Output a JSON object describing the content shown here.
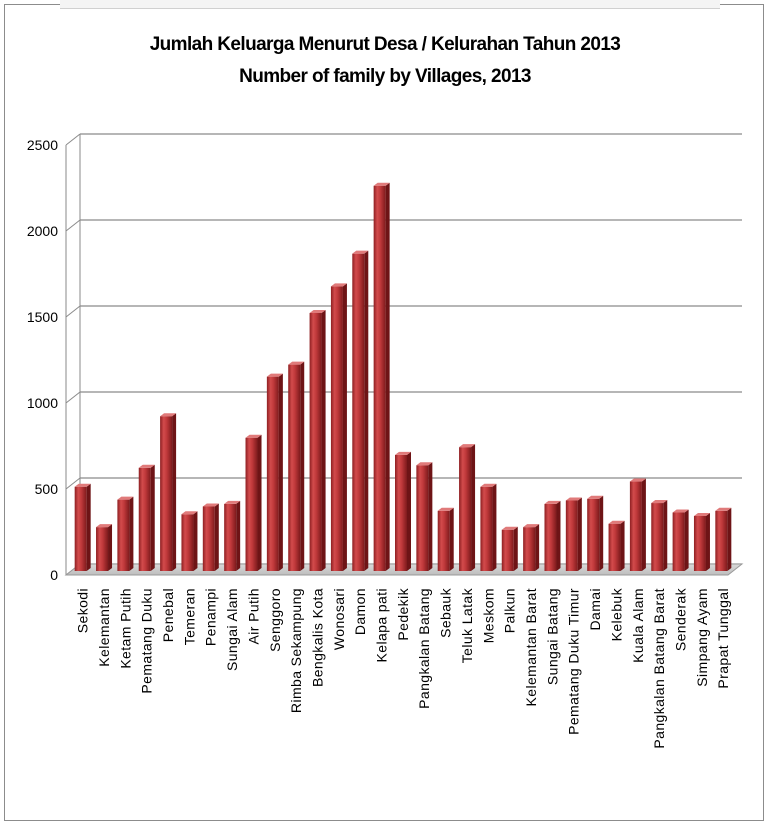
{
  "chart_data": {
    "type": "bar",
    "title": "Jumlah Keluarga Menurut Desa / Kelurahan Tahun 2013",
    "subtitle": "Number of family by Villages, 2013",
    "xlabel": "",
    "ylabel": "",
    "ylim": [
      0,
      2500
    ],
    "yticks": [
      0,
      500,
      1000,
      1500,
      2000,
      2500
    ],
    "grid": true,
    "legend": "none",
    "bar_color": "#c0393b",
    "categories": [
      "Sekodi",
      "Kelemantan",
      "Ketam Putih",
      "Pematang Duku",
      "Penebal",
      "Temeran",
      "Penampi",
      "Sungai Alam",
      "Air Putih",
      "Senggoro",
      "Rimba Sekampung",
      "Bengkalis Kota",
      "Wonosari",
      "Damon",
      "Kelapa pati",
      "Pedekik",
      "Pangkalan Batang",
      "Sebauk",
      "Teluk Latak",
      "Meskom",
      "Palkun",
      "Kelemantan Barat",
      "Sungai Batang",
      "Pematang Duku Timur",
      "Damai",
      "Kelebuk",
      "Kuala Alam",
      "Pangkalan Batang Barat",
      "Senderak",
      "Simpang Ayam",
      "Prapat Tunggal"
    ],
    "values": [
      490,
      255,
      415,
      600,
      900,
      330,
      375,
      390,
      775,
      1130,
      1200,
      1500,
      1655,
      1845,
      2240,
      675,
      615,
      350,
      720,
      490,
      240,
      255,
      390,
      410,
      420,
      275,
      520,
      395,
      340,
      320,
      350
    ]
  }
}
